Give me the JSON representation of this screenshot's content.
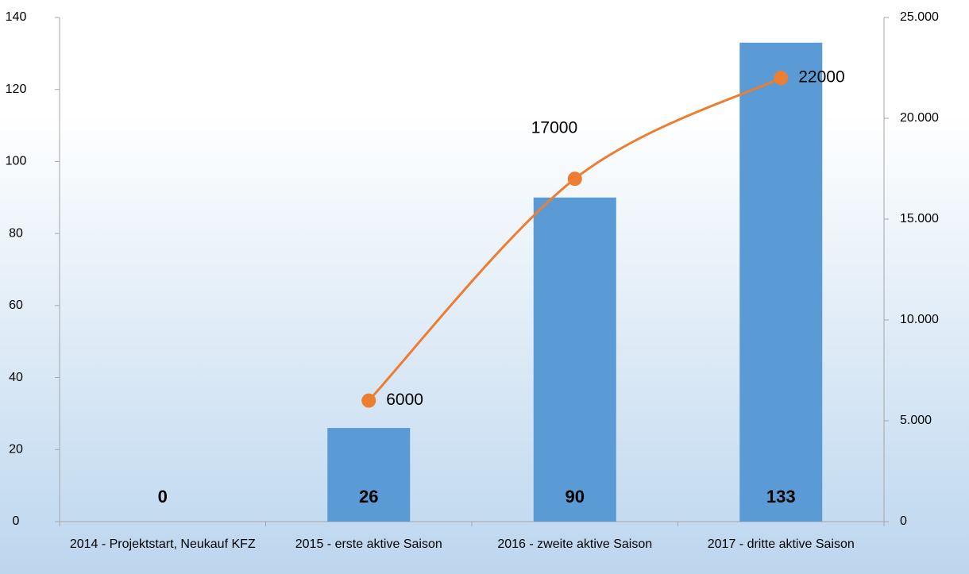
{
  "chart_data": {
    "type": "bar",
    "categories": [
      "2014 - Projektstart, Neukauf KFZ",
      "2015 - erste aktive Saison",
      "2016 - zweite aktive Saison",
      "2017 - dritte aktive Saison"
    ],
    "series": [
      {
        "type": "bar",
        "color": "#5b9bd5",
        "values": [
          0,
          26,
          90,
          133
        ]
      },
      {
        "type": "line",
        "color": "#ed7d31",
        "axis": "y2",
        "values": [
          null,
          6000,
          17000,
          22000
        ]
      }
    ],
    "ylim": [
      0,
      140
    ],
    "yticks": [
      0,
      20,
      40,
      60,
      80,
      100,
      120,
      140
    ],
    "y2lim": [
      0,
      25000
    ],
    "y2ticks": [
      0,
      {
        "value": 5000,
        "label": "5.000"
      },
      {
        "value": 10000,
        "label": "10.000"
      },
      {
        "value": 15000,
        "label": "15.000"
      },
      {
        "value": 20000,
        "label": "20.000"
      },
      {
        "value": 25000,
        "label": "25.000"
      }
    ]
  }
}
